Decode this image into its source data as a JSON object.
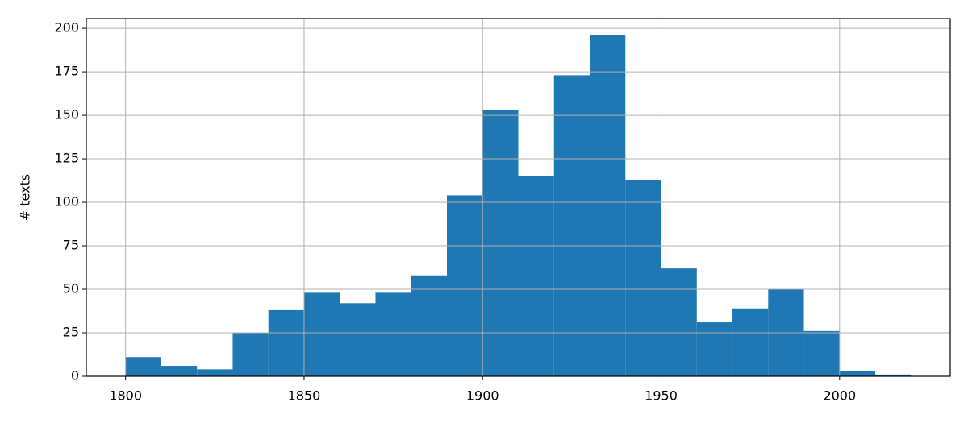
{
  "chart_data": {
    "type": "histogram",
    "ylabel": "# texts",
    "bins": [
      1800,
      1810,
      1820,
      1830,
      1840,
      1850,
      1860,
      1870,
      1880,
      1890,
      1900,
      1910,
      1920,
      1930,
      1940,
      1950,
      1960,
      1970,
      1980,
      1990,
      2000,
      2010,
      2020
    ],
    "values": [
      11,
      6,
      4,
      25,
      38,
      48,
      42,
      48,
      58,
      104,
      153,
      115,
      173,
      196,
      113,
      62,
      31,
      39,
      50,
      26,
      3,
      1
    ],
    "color": "#1f77b4",
    "xlim": [
      1789,
      2031
    ],
    "xticks": [
      1800,
      1850,
      1900,
      1950,
      2000
    ],
    "ylim": [
      0,
      205.6
    ],
    "yticks": [
      0,
      25,
      50,
      75,
      100,
      125,
      150,
      175,
      200
    ],
    "grid": true
  }
}
